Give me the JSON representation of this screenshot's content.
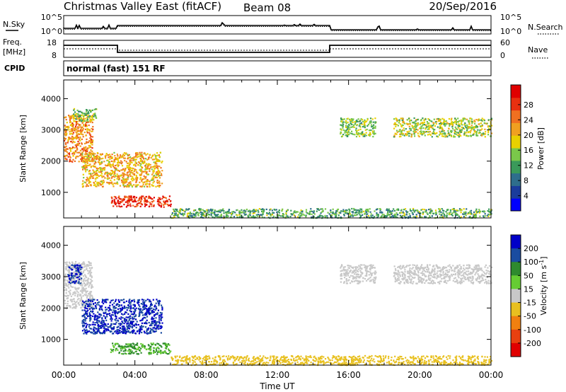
{
  "header": {
    "title": "Christmas Valley East (fitACF)",
    "beam": "Beam 08",
    "date": "20/Sep/2016"
  },
  "noise_panel": {
    "left_label": "N.Sky",
    "right_label": "N.Search",
    "ticks": [
      "10^5",
      "10^0"
    ]
  },
  "freq_panel": {
    "left_label_1": "Freq.",
    "left_label_2": "[MHz]",
    "left_ticks": [
      "18",
      "8"
    ],
    "right_label": "Nave",
    "right_ticks": [
      "60",
      "0"
    ]
  },
  "cpid_panel": {
    "label": "CPID",
    "text": "normal (fast) 151 RF"
  },
  "axes": {
    "xlabel": "Time UT",
    "ylabel": "Slant Range [km]",
    "xticks": [
      "00:00",
      "04:00",
      "08:00",
      "12:00",
      "16:00",
      "20:00",
      "00:00"
    ],
    "yticks": [
      "1000",
      "2000",
      "3000",
      "4000"
    ]
  },
  "chart_data": [
    {
      "type": "heatmap",
      "title": "",
      "xlabel": "Time UT",
      "ylabel": "Slant Range [km]",
      "xlim": [
        0,
        24
      ],
      "ylim": [
        180,
        4600
      ],
      "colorbar_label": "Power [dB]",
      "colorbar_ticks": [
        "4",
        "8",
        "12",
        "16",
        "20",
        "24",
        "28"
      ],
      "colorbar_colors": [
        "#0000ff",
        "#1a3c9c",
        "#2e6e8c",
        "#3a9a5a",
        "#7ac84a",
        "#e8d000",
        "#f0a020",
        "#f07020",
        "#e83010",
        "#e00000"
      ],
      "regions": [
        {
          "t0": 0.0,
          "t1": 1.6,
          "r0": 2000,
          "r1": 3500,
          "value_db": 22
        },
        {
          "t0": 0.5,
          "t1": 1.8,
          "r0": 3300,
          "r1": 3700,
          "value_db": 14
        },
        {
          "t0": 1.0,
          "t1": 5.5,
          "r0": 1200,
          "r1": 2300,
          "value_db": 20
        },
        {
          "t0": 2.6,
          "t1": 6.0,
          "r0": 550,
          "r1": 900,
          "value_db": 28
        },
        {
          "t0": 6.0,
          "t1": 24.0,
          "r0": 200,
          "r1": 500,
          "value_db": 12
        },
        {
          "t0": 15.5,
          "t1": 17.5,
          "r0": 2800,
          "r1": 3400,
          "value_db": 14
        },
        {
          "t0": 18.5,
          "t1": 24.0,
          "r0": 2800,
          "r1": 3400,
          "value_db": 16
        }
      ]
    },
    {
      "type": "heatmap",
      "title": "",
      "xlabel": "Time UT",
      "ylabel": "Slant Range [km]",
      "xlim": [
        0,
        24
      ],
      "ylim": [
        180,
        4600
      ],
      "colorbar_label": "Velocity [m s^-1]",
      "colorbar_ticks": [
        "200",
        "100",
        "50",
        "15",
        "-15",
        "-50",
        "-100",
        "-200"
      ],
      "colorbar_colors": [
        "#0000c8",
        "#1a4ca0",
        "#2e8a2e",
        "#66cc33",
        "#c8c8c8",
        "#e8c020",
        "#f08010",
        "#e84010",
        "#e00000"
      ],
      "regions": [
        {
          "t0": 0.0,
          "t1": 1.6,
          "r0": 2000,
          "r1": 3500,
          "velocity": 0
        },
        {
          "t0": 0.2,
          "t1": 1.0,
          "r0": 2800,
          "r1": 3400,
          "velocity": 200
        },
        {
          "t0": 1.0,
          "t1": 5.5,
          "r0": 1200,
          "r1": 2300,
          "velocity": 200
        },
        {
          "t0": 2.6,
          "t1": 6.0,
          "r0": 550,
          "r1": 900,
          "velocity": 50
        },
        {
          "t0": 6.0,
          "t1": 24.0,
          "r0": 200,
          "r1": 500,
          "velocity": -30
        },
        {
          "t0": 15.5,
          "t1": 17.5,
          "r0": 2800,
          "r1": 3400,
          "velocity": 0
        },
        {
          "t0": 18.5,
          "t1": 24.0,
          "r0": 2800,
          "r1": 3400,
          "velocity": 0
        }
      ]
    }
  ]
}
